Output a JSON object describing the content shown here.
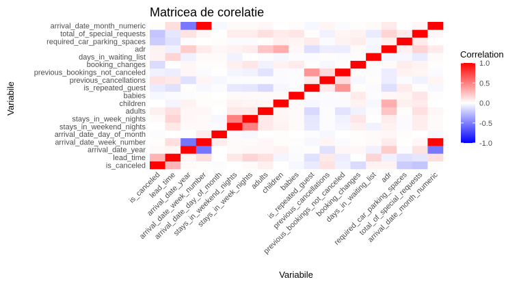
{
  "chart_data": {
    "type": "heatmap",
    "title": "Matricea de corelatie",
    "xlabel": "Variabile",
    "ylabel": "Variabile",
    "variables": [
      "is_canceled",
      "lead_time",
      "arrival_date_year",
      "arrival_date_week_number",
      "arrival_date_day_of_month",
      "stays_in_weekend_nights",
      "stays_in_week_nights",
      "adults",
      "children",
      "babies",
      "is_repeated_guest",
      "previous_cancellations",
      "previous_bookings_not_canceled",
      "booking_changes",
      "days_in_waiting_list",
      "adr",
      "required_car_parking_spaces",
      "total_of_special_requests",
      "arrival_date_month_numeric"
    ],
    "matrix": [
      [
        1.0,
        0.29,
        0.02,
        0.01,
        -0.01,
        -0.0,
        0.02,
        0.06,
        0.0,
        -0.03,
        -0.08,
        0.11,
        -0.06,
        -0.14,
        0.05,
        0.05,
        -0.2,
        -0.23,
        0.01
      ],
      [
        0.29,
        1.0,
        0.04,
        0.13,
        0.0,
        0.09,
        0.17,
        0.12,
        -0.04,
        -0.02,
        -0.12,
        0.09,
        -0.07,
        0.0,
        0.17,
        -0.06,
        -0.12,
        -0.1,
        0.13
      ],
      [
        0.02,
        0.04,
        1.0,
        -0.54,
        -0.0,
        0.02,
        0.03,
        0.03,
        0.05,
        -0.01,
        0.01,
        -0.12,
        0.03,
        0.03,
        -0.06,
        0.2,
        -0.01,
        0.11,
        -0.53
      ],
      [
        0.01,
        0.13,
        -0.54,
        1.0,
        0.07,
        0.02,
        0.02,
        0.03,
        0.01,
        0.01,
        -0.03,
        0.04,
        -0.02,
        0.01,
        0.02,
        0.08,
        0.0,
        0.03,
        0.99
      ],
      [
        -0.01,
        0.0,
        -0.0,
        0.07,
        1.0,
        -0.02,
        -0.03,
        -0.0,
        0.01,
        -0.0,
        -0.01,
        -0.03,
        -0.0,
        0.01,
        0.02,
        0.03,
        0.01,
        0.0,
        -0.03
      ],
      [
        -0.0,
        0.09,
        0.02,
        0.02,
        -0.02,
        1.0,
        0.5,
        0.09,
        0.05,
        0.02,
        -0.09,
        -0.01,
        -0.04,
        0.06,
        -0.05,
        0.05,
        -0.02,
        0.07,
        0.02
      ],
      [
        0.02,
        0.17,
        0.03,
        0.02,
        -0.03,
        0.5,
        1.0,
        0.09,
        0.04,
        0.02,
        -0.1,
        -0.01,
        -0.05,
        0.1,
        -0.0,
        0.07,
        -0.02,
        0.07,
        0.02
      ],
      [
        0.06,
        0.12,
        0.03,
        0.03,
        -0.0,
        0.09,
        0.09,
        1.0,
        0.03,
        0.02,
        -0.15,
        -0.01,
        -0.11,
        -0.05,
        -0.01,
        0.23,
        0.01,
        0.12,
        0.03
      ],
      [
        0.0,
        -0.04,
        0.05,
        0.01,
        0.01,
        0.05,
        0.04,
        0.03,
        1.0,
        0.02,
        -0.03,
        -0.02,
        -0.02,
        0.05,
        -0.03,
        0.32,
        0.06,
        0.08,
        0.0
      ],
      [
        -0.03,
        -0.02,
        -0.01,
        0.01,
        -0.0,
        0.02,
        0.02,
        0.02,
        0.02,
        1.0,
        -0.01,
        -0.01,
        -0.01,
        0.08,
        -0.01,
        0.03,
        0.04,
        0.1,
        0.01
      ],
      [
        -0.08,
        -0.12,
        0.01,
        -0.03,
        -0.01,
        -0.09,
        -0.1,
        -0.15,
        -0.03,
        -0.01,
        1.0,
        0.08,
        0.42,
        0.01,
        -0.02,
        -0.13,
        0.08,
        0.01,
        -0.03
      ],
      [
        0.11,
        0.09,
        -0.12,
        0.04,
        -0.03,
        -0.01,
        -0.01,
        -0.01,
        -0.02,
        -0.01,
        0.08,
        1.0,
        0.15,
        -0.03,
        0.01,
        -0.07,
        -0.02,
        -0.05,
        0.04
      ],
      [
        -0.06,
        -0.07,
        0.03,
        -0.02,
        -0.0,
        -0.04,
        -0.05,
        -0.11,
        -0.02,
        -0.01,
        0.42,
        0.15,
        1.0,
        0.01,
        -0.01,
        -0.07,
        0.05,
        0.04,
        -0.02
      ],
      [
        -0.14,
        0.0,
        0.03,
        0.01,
        0.01,
        0.06,
        0.1,
        -0.05,
        0.05,
        0.08,
        0.01,
        -0.03,
        0.01,
        1.0,
        -0.01,
        0.02,
        0.07,
        0.05,
        0.01
      ],
      [
        0.05,
        0.17,
        -0.06,
        0.02,
        0.02,
        -0.05,
        -0.0,
        -0.01,
        -0.03,
        -0.01,
        -0.02,
        0.01,
        -0.01,
        -0.01,
        1.0,
        -0.04,
        -0.03,
        -0.08,
        0.02
      ],
      [
        0.05,
        -0.06,
        0.2,
        0.08,
        0.03,
        0.05,
        0.07,
        0.23,
        0.32,
        0.03,
        -0.13,
        -0.07,
        -0.07,
        0.02,
        -0.04,
        1.0,
        0.06,
        0.17,
        0.08
      ],
      [
        -0.2,
        -0.12,
        -0.01,
        0.0,
        0.01,
        -0.02,
        -0.02,
        0.01,
        0.06,
        0.04,
        0.08,
        -0.02,
        0.05,
        0.07,
        -0.03,
        0.06,
        1.0,
        0.08,
        0.0
      ],
      [
        -0.23,
        -0.1,
        0.11,
        0.03,
        0.0,
        0.07,
        0.07,
        0.12,
        0.08,
        0.1,
        0.01,
        -0.05,
        0.04,
        0.05,
        -0.08,
        0.17,
        0.08,
        1.0,
        0.03
      ],
      [
        0.01,
        0.13,
        -0.53,
        0.99,
        -0.03,
        0.02,
        0.02,
        0.03,
        0.0,
        0.01,
        -0.03,
        0.04,
        -0.02,
        0.01,
        0.02,
        0.08,
        0.0,
        0.03,
        1.0
      ]
    ],
    "scale": {
      "limits": [
        -1,
        1
      ],
      "low_color": "#0000ff",
      "mid_color": "#ffffff",
      "high_color": "#ff0000"
    },
    "legend": {
      "title": "Correlation",
      "breaks": [
        1.0,
        0.5,
        0.0,
        -0.5,
        -1.0
      ],
      "labels": [
        "1.0",
        "0.5",
        "0.0",
        "-0.5",
        "-1.0"
      ],
      "placement": "right"
    },
    "grid": false
  }
}
